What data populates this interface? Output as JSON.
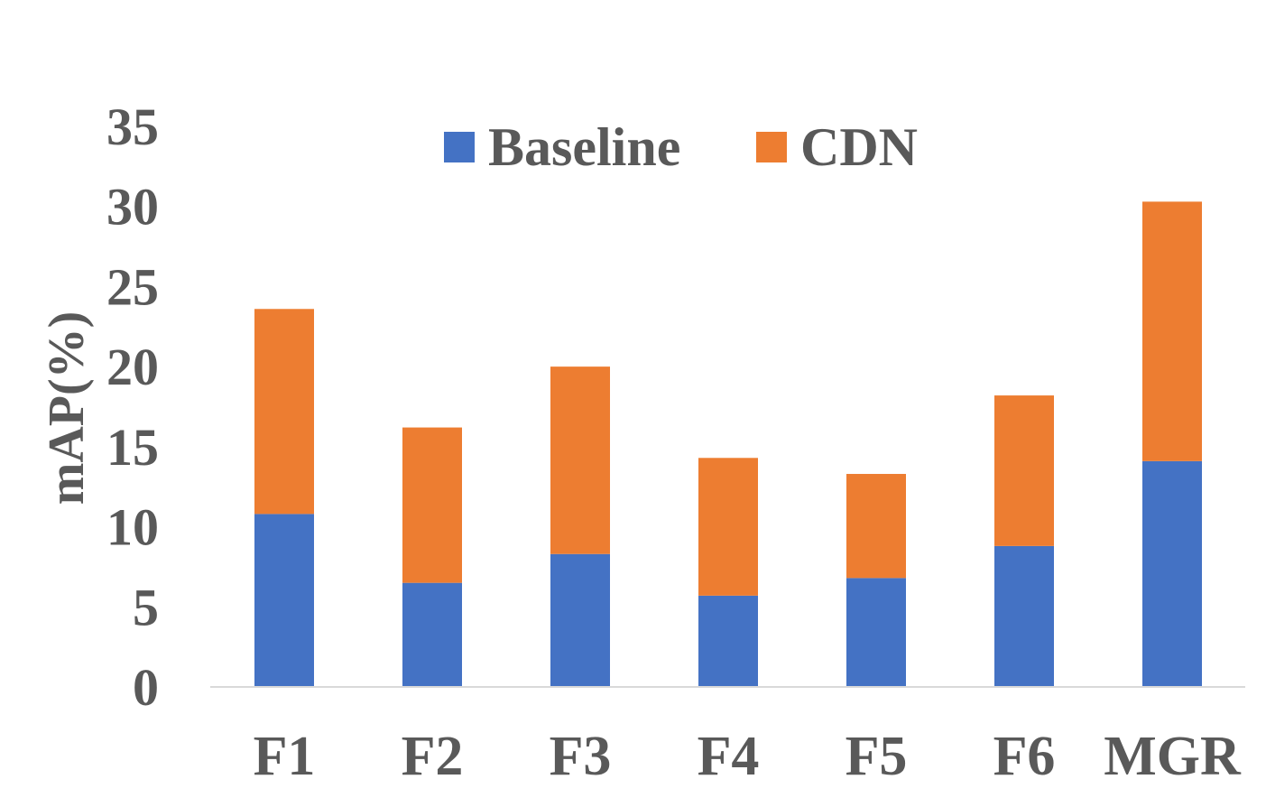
{
  "chart_data": {
    "type": "bar",
    "stacked": true,
    "title": "",
    "xlabel": "",
    "ylabel": "mAP(%)",
    "ylim": [
      0,
      35
    ],
    "yticks": [
      0,
      5,
      10,
      15,
      20,
      25,
      30,
      35
    ],
    "grid": false,
    "legend_position": "top-center",
    "categories": [
      "F1",
      "F2",
      "F3",
      "F4",
      "F5",
      "F6",
      "MGR"
    ],
    "series": [
      {
        "name": "Baseline",
        "color": "#4472C4",
        "values": [
          10.8,
          6.5,
          8.3,
          5.7,
          6.8,
          8.8,
          14.1
        ]
      },
      {
        "name": "CDN",
        "color": "#ED7D31",
        "values": [
          12.8,
          9.7,
          11.7,
          8.6,
          6.5,
          9.4,
          16.2
        ]
      }
    ]
  }
}
